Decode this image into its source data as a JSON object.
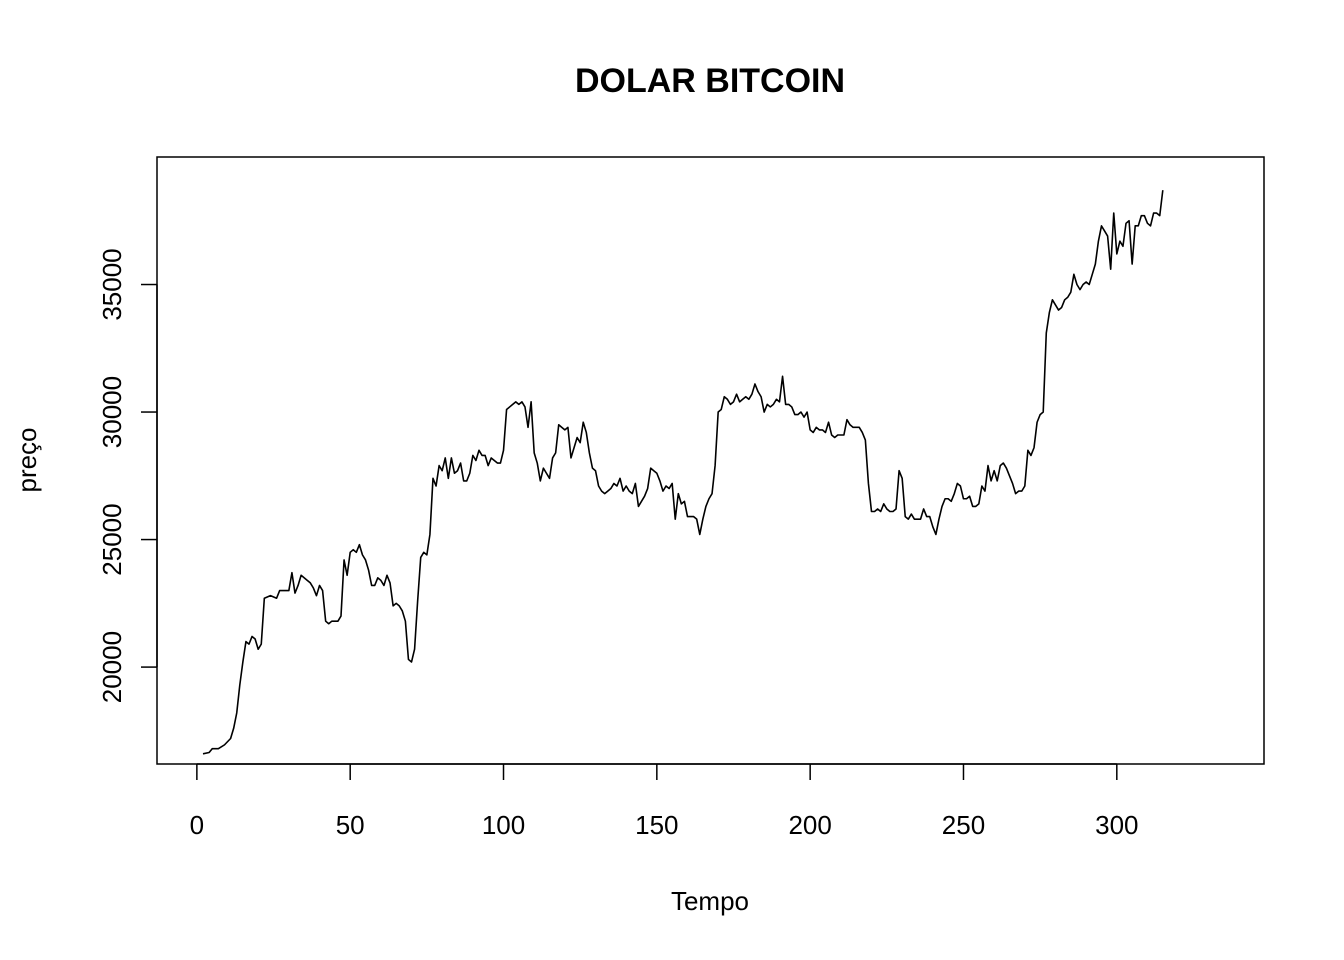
{
  "chart_data": {
    "type": "line",
    "title": "DOLAR BITCOIN",
    "xlabel": "Tempo",
    "ylabel": "preço",
    "xlim": [
      -13,
      348
    ],
    "ylim": [
      16200,
      40000
    ],
    "xticks": [
      0,
      50,
      100,
      150,
      200,
      250,
      300
    ],
    "yticks": [
      20000,
      25000,
      30000,
      35000
    ],
    "grid": false,
    "legend": "none",
    "colors": {
      "line": "#000000",
      "frame": "#000000",
      "background": "#ffffff"
    },
    "series": [
      {
        "points": [
          [
            2,
            16600
          ],
          [
            4,
            16650
          ],
          [
            5,
            16800
          ],
          [
            7,
            16800
          ],
          [
            9,
            16950
          ],
          [
            11,
            17200
          ],
          [
            12,
            17600
          ],
          [
            13,
            18200
          ],
          [
            14,
            19300
          ],
          [
            15,
            20200
          ],
          [
            16,
            21000
          ],
          [
            17,
            20900
          ],
          [
            18,
            21200
          ],
          [
            19,
            21100
          ],
          [
            20,
            20700
          ],
          [
            21,
            20900
          ],
          [
            22,
            22700
          ],
          [
            24,
            22800
          ],
          [
            26,
            22700
          ],
          [
            27,
            23000
          ],
          [
            29,
            23000
          ],
          [
            30,
            23000
          ],
          [
            31,
            23700
          ],
          [
            32,
            22900
          ],
          [
            33,
            23200
          ],
          [
            34,
            23600
          ],
          [
            36,
            23400
          ],
          [
            37,
            23300
          ],
          [
            38,
            23100
          ],
          [
            39,
            22800
          ],
          [
            40,
            23200
          ],
          [
            41,
            23000
          ],
          [
            42,
            21800
          ],
          [
            43,
            21700
          ],
          [
            44,
            21800
          ],
          [
            46,
            21800
          ],
          [
            47,
            22000
          ],
          [
            48,
            24200
          ],
          [
            49,
            23600
          ],
          [
            50,
            24500
          ],
          [
            51,
            24600
          ],
          [
            52,
            24500
          ],
          [
            53,
            24800
          ],
          [
            54,
            24400
          ],
          [
            55,
            24200
          ],
          [
            56,
            23800
          ],
          [
            57,
            23200
          ],
          [
            58,
            23200
          ],
          [
            59,
            23500
          ],
          [
            60,
            23400
          ],
          [
            61,
            23200
          ],
          [
            62,
            23600
          ],
          [
            63,
            23300
          ],
          [
            64,
            22400
          ],
          [
            65,
            22500
          ],
          [
            66,
            22400
          ],
          [
            67,
            22200
          ],
          [
            68,
            21800
          ],
          [
            69,
            20300
          ],
          [
            70,
            20200
          ],
          [
            71,
            20700
          ],
          [
            72,
            22600
          ],
          [
            73,
            24300
          ],
          [
            74,
            24500
          ],
          [
            75,
            24400
          ],
          [
            76,
            25200
          ],
          [
            77,
            27400
          ],
          [
            78,
            27100
          ],
          [
            79,
            27900
          ],
          [
            80,
            27700
          ],
          [
            81,
            28200
          ],
          [
            82,
            27400
          ],
          [
            83,
            28200
          ],
          [
            84,
            27600
          ],
          [
            85,
            27700
          ],
          [
            86,
            28000
          ],
          [
            87,
            27300
          ],
          [
            88,
            27300
          ],
          [
            89,
            27600
          ],
          [
            90,
            28300
          ],
          [
            91,
            28100
          ],
          [
            92,
            28500
          ],
          [
            93,
            28300
          ],
          [
            94,
            28300
          ],
          [
            95,
            27900
          ],
          [
            96,
            28200
          ],
          [
            97,
            28100
          ],
          [
            98,
            28000
          ],
          [
            99,
            28000
          ],
          [
            100,
            28500
          ],
          [
            101,
            30100
          ],
          [
            102,
            30200
          ],
          [
            103,
            30300
          ],
          [
            104,
            30400
          ],
          [
            105,
            30300
          ],
          [
            106,
            30400
          ],
          [
            107,
            30200
          ],
          [
            108,
            29400
          ],
          [
            109,
            30400
          ],
          [
            110,
            28400
          ],
          [
            111,
            28000
          ],
          [
            112,
            27300
          ],
          [
            113,
            27800
          ],
          [
            114,
            27600
          ],
          [
            115,
            27400
          ],
          [
            116,
            28200
          ],
          [
            117,
            28400
          ],
          [
            118,
            29500
          ],
          [
            119,
            29400
          ],
          [
            120,
            29300
          ],
          [
            121,
            29400
          ],
          [
            122,
            28200
          ],
          [
            123,
            28600
          ],
          [
            124,
            29000
          ],
          [
            125,
            28800
          ],
          [
            126,
            29600
          ],
          [
            127,
            29200
          ],
          [
            128,
            28400
          ],
          [
            129,
            27800
          ],
          [
            130,
            27700
          ],
          [
            131,
            27100
          ],
          [
            132,
            26900
          ],
          [
            133,
            26800
          ],
          [
            134,
            26900
          ],
          [
            135,
            27000
          ],
          [
            136,
            27200
          ],
          [
            137,
            27100
          ],
          [
            138,
            27400
          ],
          [
            139,
            26900
          ],
          [
            140,
            27100
          ],
          [
            141,
            26900
          ],
          [
            142,
            26800
          ],
          [
            143,
            27200
          ],
          [
            144,
            26300
          ],
          [
            145,
            26500
          ],
          [
            146,
            26700
          ],
          [
            147,
            27000
          ],
          [
            148,
            27800
          ],
          [
            149,
            27700
          ],
          [
            150,
            27600
          ],
          [
            151,
            27300
          ],
          [
            152,
            26900
          ],
          [
            153,
            27100
          ],
          [
            154,
            27000
          ],
          [
            155,
            27200
          ],
          [
            156,
            25800
          ],
          [
            157,
            26800
          ],
          [
            158,
            26400
          ],
          [
            159,
            26500
          ],
          [
            160,
            25900
          ],
          [
            161,
            25900
          ],
          [
            162,
            25900
          ],
          [
            163,
            25800
          ],
          [
            164,
            25200
          ],
          [
            165,
            25800
          ],
          [
            166,
            26300
          ],
          [
            167,
            26600
          ],
          [
            168,
            26800
          ],
          [
            169,
            27900
          ],
          [
            170,
            30000
          ],
          [
            171,
            30100
          ],
          [
            172,
            30600
          ],
          [
            173,
            30500
          ],
          [
            174,
            30300
          ],
          [
            175,
            30400
          ],
          [
            176,
            30700
          ],
          [
            177,
            30400
          ],
          [
            178,
            30500
          ],
          [
            179,
            30600
          ],
          [
            180,
            30500
          ],
          [
            181,
            30700
          ],
          [
            182,
            31100
          ],
          [
            183,
            30800
          ],
          [
            184,
            30600
          ],
          [
            185,
            30000
          ],
          [
            186,
            30300
          ],
          [
            187,
            30200
          ],
          [
            188,
            30300
          ],
          [
            189,
            30500
          ],
          [
            190,
            30400
          ],
          [
            191,
            31400
          ],
          [
            192,
            30300
          ],
          [
            193,
            30300
          ],
          [
            194,
            30200
          ],
          [
            195,
            29900
          ],
          [
            196,
            29900
          ],
          [
            197,
            30000
          ],
          [
            198,
            29800
          ],
          [
            199,
            30000
          ],
          [
            200,
            29300
          ],
          [
            201,
            29200
          ],
          [
            202,
            29400
          ],
          [
            203,
            29300
          ],
          [
            204,
            29300
          ],
          [
            205,
            29200
          ],
          [
            206,
            29600
          ],
          [
            207,
            29100
          ],
          [
            208,
            29000
          ],
          [
            209,
            29100
          ],
          [
            210,
            29100
          ],
          [
            211,
            29100
          ],
          [
            212,
            29700
          ],
          [
            213,
            29500
          ],
          [
            214,
            29400
          ],
          [
            215,
            29400
          ],
          [
            216,
            29400
          ],
          [
            217,
            29200
          ],
          [
            218,
            28900
          ],
          [
            219,
            27200
          ],
          [
            220,
            26100
          ],
          [
            221,
            26100
          ],
          [
            222,
            26200
          ],
          [
            223,
            26100
          ],
          [
            224,
            26400
          ],
          [
            225,
            26200
          ],
          [
            226,
            26100
          ],
          [
            227,
            26100
          ],
          [
            228,
            26200
          ],
          [
            229,
            27700
          ],
          [
            230,
            27400
          ],
          [
            231,
            25900
          ],
          [
            232,
            25800
          ],
          [
            233,
            26000
          ],
          [
            234,
            25800
          ],
          [
            235,
            25800
          ],
          [
            236,
            25800
          ],
          [
            237,
            26200
          ],
          [
            238,
            25900
          ],
          [
            239,
            25900
          ],
          [
            240,
            25500
          ],
          [
            241,
            25200
          ],
          [
            242,
            25800
          ],
          [
            243,
            26300
          ],
          [
            244,
            26600
          ],
          [
            245,
            26600
          ],
          [
            246,
            26500
          ],
          [
            247,
            26800
          ],
          [
            248,
            27200
          ],
          [
            249,
            27100
          ],
          [
            250,
            26600
          ],
          [
            251,
            26600
          ],
          [
            252,
            26700
          ],
          [
            253,
            26300
          ],
          [
            254,
            26300
          ],
          [
            255,
            26400
          ],
          [
            256,
            27100
          ],
          [
            257,
            26900
          ],
          [
            258,
            27900
          ],
          [
            259,
            27300
          ],
          [
            260,
            27700
          ],
          [
            261,
            27300
          ],
          [
            262,
            27900
          ],
          [
            263,
            28000
          ],
          [
            264,
            27800
          ],
          [
            265,
            27500
          ],
          [
            266,
            27200
          ],
          [
            267,
            26800
          ],
          [
            268,
            26900
          ],
          [
            269,
            26900
          ],
          [
            270,
            27100
          ],
          [
            271,
            28500
          ],
          [
            272,
            28300
          ],
          [
            273,
            28600
          ],
          [
            274,
            29600
          ],
          [
            275,
            29900
          ],
          [
            276,
            30000
          ],
          [
            277,
            33100
          ],
          [
            278,
            33900
          ],
          [
            279,
            34400
          ],
          [
            280,
            34200
          ],
          [
            281,
            34000
          ],
          [
            282,
            34100
          ],
          [
            283,
            34400
          ],
          [
            284,
            34500
          ],
          [
            285,
            34700
          ],
          [
            286,
            35400
          ],
          [
            287,
            35000
          ],
          [
            288,
            34800
          ],
          [
            289,
            35000
          ],
          [
            290,
            35100
          ],
          [
            291,
            35000
          ],
          [
            292,
            35400
          ],
          [
            293,
            35800
          ],
          [
            294,
            36700
          ],
          [
            295,
            37300
          ],
          [
            296,
            37100
          ],
          [
            297,
            36900
          ],
          [
            298,
            35600
          ],
          [
            299,
            37800
          ],
          [
            300,
            36200
          ],
          [
            301,
            36700
          ],
          [
            302,
            36500
          ],
          [
            303,
            37400
          ],
          [
            304,
            37500
          ],
          [
            305,
            35800
          ],
          [
            306,
            37300
          ],
          [
            307,
            37300
          ],
          [
            308,
            37700
          ],
          [
            309,
            37700
          ],
          [
            310,
            37400
          ],
          [
            311,
            37300
          ],
          [
            312,
            37800
          ],
          [
            313,
            37800
          ],
          [
            314,
            37700
          ],
          [
            315,
            38700
          ]
        ]
      }
    ]
  }
}
